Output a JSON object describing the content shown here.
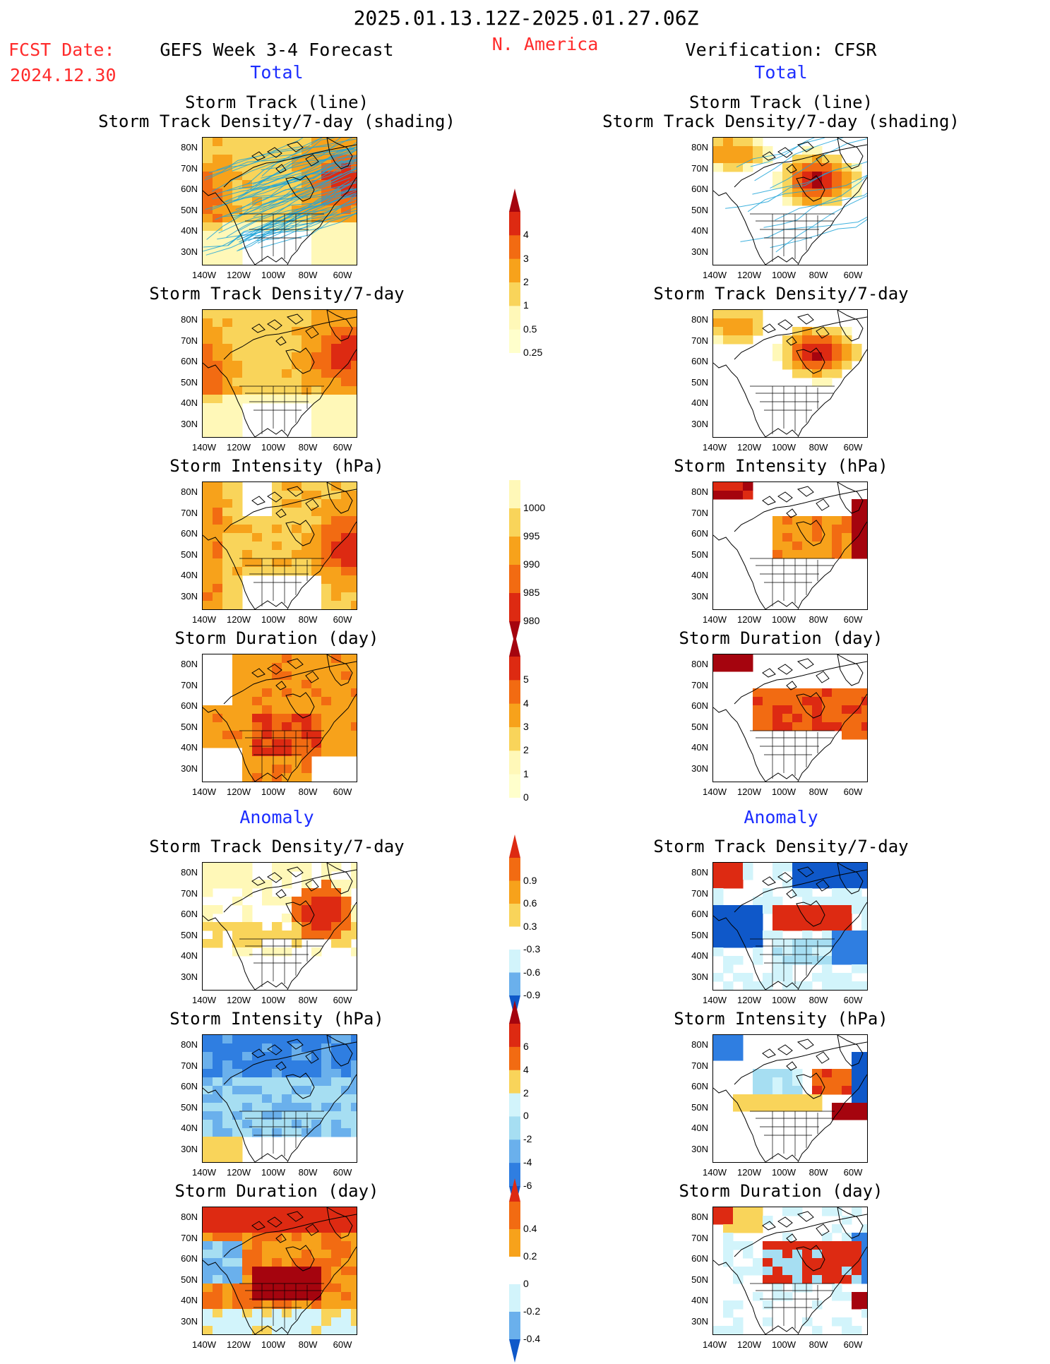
{
  "header": {
    "date_range": "2025.01.13.12Z-2025.01.27.06Z",
    "fcst_label": "FCST Date:",
    "fcst_date": "2024.12.30",
    "forecast_title": "GEFS Week 3-4 Forecast",
    "region": "N. America",
    "verification_title": "Verification: CFSR"
  },
  "sections": {
    "total": "Total",
    "anomaly": "Anomaly"
  },
  "panel_titles": {
    "track_line": "Storm Track (line)",
    "track_shading": "Storm Track Density/7-day (shading)",
    "density": "Storm Track Density/7-day",
    "intensity": "Storm Intensity (hPa)",
    "duration": "Storm Duration (day)"
  },
  "axes": {
    "lat_labels": [
      "80N",
      "70N",
      "60N",
      "50N",
      "40N",
      "30N"
    ],
    "lon_labels": [
      "140W",
      "120W",
      "100W",
      "80W",
      "60W"
    ]
  },
  "colors": {
    "warm": [
      "#fff8b8",
      "#f9d45a",
      "#f7a21b",
      "#f26b12",
      "#dd2a12",
      "#a5040e"
    ],
    "cool": [
      "#ffffff",
      "#d2f4fb",
      "#a6def2",
      "#6ab0ec",
      "#2f7ee1",
      "#0f58c9"
    ],
    "track_line": "#20a5d8"
  },
  "chart_data": {
    "type": "heatmap",
    "colorbars": [
      {
        "name": "Storm Track Density/7-day",
        "levels": [
          "0.25",
          "0.5",
          "1",
          "2",
          "3",
          "4"
        ]
      },
      {
        "name": "Storm Intensity (hPa)",
        "levels": [
          "1000",
          "995",
          "990",
          "985",
          "980"
        ]
      },
      {
        "name": "Storm Duration (day)",
        "levels": [
          "0",
          "1",
          "2",
          "3",
          "4",
          "5"
        ]
      },
      {
        "name": "Storm Track Density/7-day anomaly",
        "levels": [
          "0.9",
          "0.6",
          "0.3",
          "-0.3",
          "-0.6",
          "-0.9"
        ]
      },
      {
        "name": "Storm Intensity (hPa) anomaly",
        "levels": [
          "6",
          "4",
          "2",
          "0",
          "-2",
          "-4",
          "-6"
        ]
      },
      {
        "name": "Storm Duration (day) anomaly",
        "levels": [
          "0.4",
          "0.2",
          "0",
          "-0.2",
          "-0.4"
        ]
      }
    ],
    "lon_range": [
      "140W",
      "50W"
    ],
    "lat_range": [
      "25N",
      "85N"
    ]
  }
}
